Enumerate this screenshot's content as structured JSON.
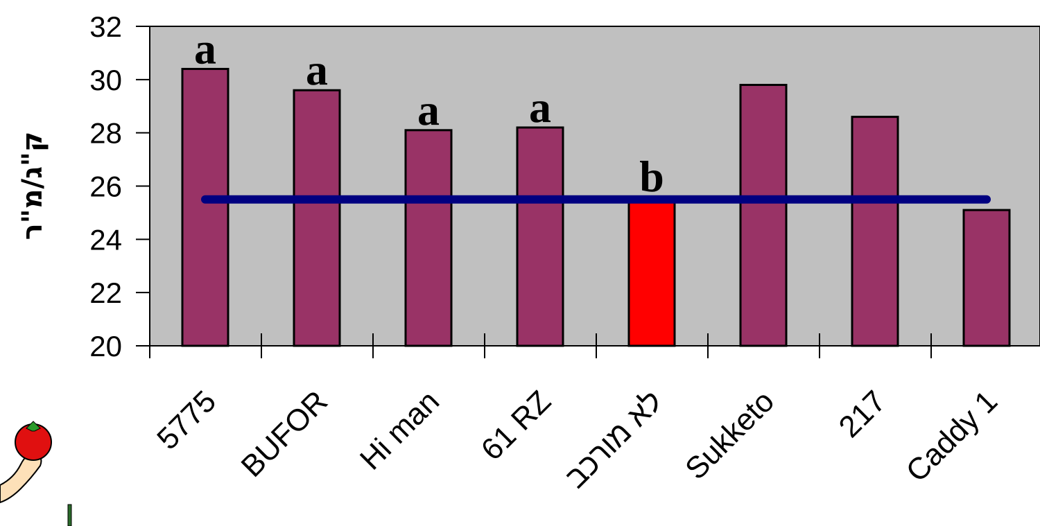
{
  "chart_data": {
    "type": "bar",
    "title": "",
    "xlabel": "",
    "ylabel": "ק\"ג/מ\"ר",
    "ylim": [
      20,
      32
    ],
    "yticks": [
      "20",
      "22",
      "24",
      "26",
      "28",
      "30",
      "32"
    ],
    "categories": [
      "5775",
      "BUFOR",
      "Hi man",
      "61 RZ",
      "לא מורכב",
      "Sukketo",
      "217",
      "Caddy 1"
    ],
    "values": [
      30.4,
      29.6,
      28.1,
      28.2,
      25.6,
      29.8,
      28.6,
      25.1
    ],
    "significance": [
      "a",
      "a",
      "a",
      "a",
      "b",
      "",
      "",
      ""
    ],
    "reference_line": 25.5,
    "grid": false,
    "colors": {
      "plot_background": "#c0c0c0",
      "bar": "#993366",
      "highlight_bar": "#ff0000",
      "reference_line": "#000080"
    },
    "highlight_index": 4
  },
  "decoration": {
    "clipart": "tomato-hand-clipart"
  }
}
